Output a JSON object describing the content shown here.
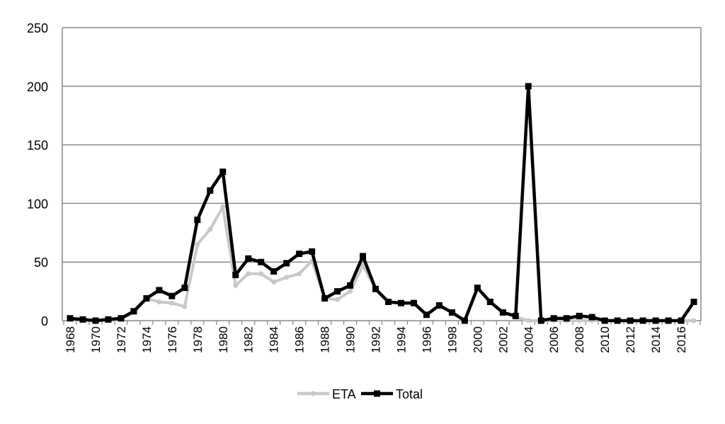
{
  "chart_data": {
    "type": "line",
    "title": "",
    "xlabel": "",
    "ylabel": "",
    "ylim": [
      0,
      250
    ],
    "yticks": [
      0,
      50,
      100,
      150,
      200,
      250
    ],
    "grid": true,
    "legend_position": "bottom",
    "x": [
      1968,
      1969,
      1970,
      1971,
      1972,
      1973,
      1974,
      1975,
      1976,
      1977,
      1978,
      1979,
      1980,
      1981,
      1982,
      1983,
      1984,
      1985,
      1986,
      1987,
      1988,
      1989,
      1990,
      1991,
      1992,
      1993,
      1994,
      1995,
      1996,
      1997,
      1998,
      1999,
      2000,
      2001,
      2002,
      2003,
      2004,
      2005,
      2006,
      2007,
      2008,
      2009,
      2010,
      2011,
      2012,
      2013,
      2014,
      2015,
      2016,
      2017
    ],
    "xtick_labels": [
      "1968",
      "1970",
      "1972",
      "1974",
      "1976",
      "1978",
      "1980",
      "1982",
      "1984",
      "1986",
      "1988",
      "1990",
      "1992",
      "1994",
      "1996",
      "1998",
      "2000",
      "2002",
      "2004",
      "2006",
      "2008",
      "2010",
      "2012",
      "2014",
      "2016"
    ],
    "series": [
      {
        "name": "ETA",
        "color": "#c8c8c8",
        "marker": "circle",
        "values": [
          2,
          1,
          0,
          1,
          1,
          7,
          19,
          16,
          15,
          12,
          65,
          78,
          97,
          30,
          40,
          40,
          33,
          37,
          40,
          51,
          19,
          18,
          25,
          47,
          27,
          16,
          15,
          15,
          5,
          13,
          7,
          0,
          28,
          16,
          7,
          3,
          0,
          0,
          0,
          0,
          0,
          0,
          0,
          0,
          0,
          0,
          0,
          0,
          0,
          0
        ]
      },
      {
        "name": "Total",
        "color": "#000000",
        "marker": "square",
        "values": [
          2,
          1,
          0,
          1,
          2,
          8,
          19,
          26,
          21,
          28,
          86,
          111,
          127,
          39,
          53,
          50,
          42,
          49,
          57,
          59,
          19,
          25,
          30,
          55,
          27,
          16,
          15,
          15,
          5,
          13,
          7,
          0,
          28,
          16,
          7,
          4,
          200,
          0,
          2,
          2,
          4,
          3,
          0,
          0,
          0,
          0,
          0,
          0,
          0,
          16
        ]
      }
    ]
  }
}
